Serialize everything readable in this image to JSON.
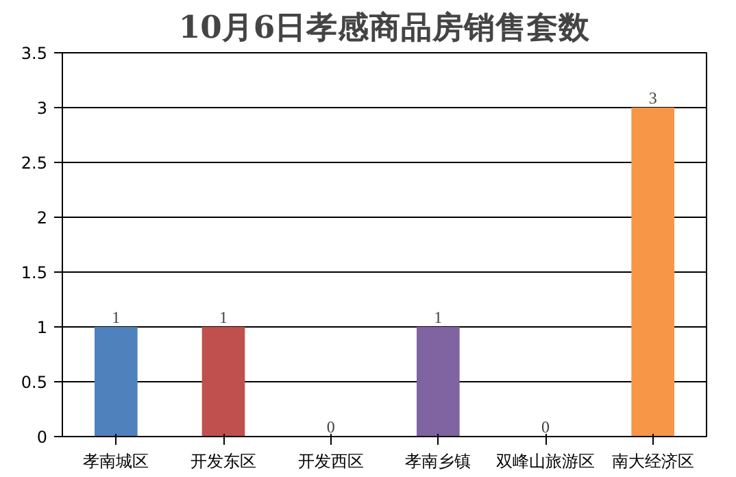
{
  "chart_data": {
    "type": "bar",
    "title": "10月6日孝感商品房销售套数",
    "categories": [
      "孝南城区",
      "开发东区",
      "开发西区",
      "孝南乡镇",
      "双峰山旅游区",
      "南大经济区"
    ],
    "values": [
      1,
      1,
      0,
      1,
      0,
      3
    ],
    "colors": [
      "#4f81bd",
      "#c0504d",
      "#9bbb59",
      "#8064a2",
      "#4bacc6",
      "#f79646"
    ],
    "ylim": [
      0,
      3.5
    ],
    "yticks": [
      0,
      0.5,
      1,
      1.5,
      2,
      2.5,
      3,
      3.5
    ],
    "grid": "y",
    "data_labels": true
  }
}
